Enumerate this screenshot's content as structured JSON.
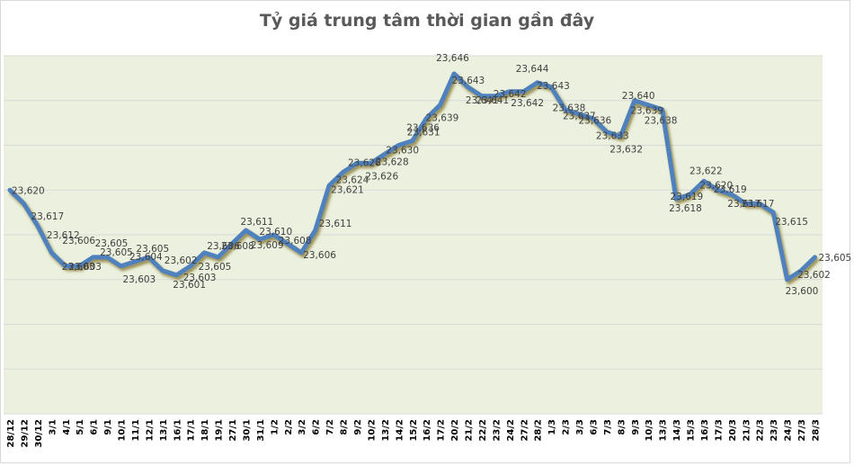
{
  "chart_data": {
    "type": "line",
    "title": "Tỷ giá trung tâm thời gian gần đây",
    "xlabel": "",
    "ylabel": "",
    "ylim": [
      23570,
      23650
    ],
    "grid": true,
    "gridline_step": 10,
    "legend": "none",
    "colors": {
      "line": "#4f81bd",
      "plot_bg": "#ebf1de",
      "gridline": "#d9d9d9",
      "shadow": "#8a7a3a",
      "label": "#404040",
      "title": "#595959"
    },
    "categories": [
      "28/12",
      "29/12",
      "30/12",
      "3/1",
      "4/1",
      "5/1",
      "6/1",
      "9/1",
      "10/1",
      "11/1",
      "12/1",
      "13/1",
      "16/1",
      "17/1",
      "18/1",
      "19/1",
      "27/1",
      "30/1",
      "31/1",
      "1/2",
      "2/2",
      "3/2",
      "6/2",
      "7/2",
      "8/2",
      "9/2",
      "10/2",
      "13/2",
      "14/2",
      "15/2",
      "16/2",
      "17/2",
      "20/2",
      "21/2",
      "22/2",
      "23/2",
      "24/2",
      "27/2",
      "28/2",
      "1/3",
      "2/3",
      "3/3",
      "6/3",
      "7/3",
      "8/3",
      "9/3",
      "10/3",
      "13/3",
      "14/3",
      "15/3",
      "16/3",
      "17/3",
      "20/3",
      "21/3",
      "22/3",
      "23/3",
      "24/3",
      "27/3",
      "28/3"
    ],
    "series": [
      {
        "name": "Tỷ giá trung tâm",
        "values": [
          23620,
          23617,
          23612,
          23606,
          23603,
          23603,
          23605,
          23605,
          23603,
          23604,
          23605,
          23602,
          23601,
          23603,
          23606,
          23605,
          23608,
          23611,
          23609,
          23610,
          23608,
          23606,
          23611,
          23621,
          23624,
          23626,
          23626,
          23628,
          23630,
          23631,
          23636,
          23639,
          23646,
          23643,
          23641,
          23641,
          23642,
          23642,
          23644,
          23643,
          23638,
          23637,
          23636,
          23633,
          23632,
          23640,
          23639,
          23638,
          23618,
          23619,
          23622,
          23620,
          23619,
          23617,
          23617,
          23615,
          23600,
          23602,
          23605
        ]
      }
    ],
    "data_labels": [
      "23,620",
      "23,617",
      "23,612",
      "23,606",
      "23,603",
      "23,603",
      "23,605",
      "23,605",
      "23,603",
      "23,604",
      "23,605",
      "23,602",
      "23,601",
      "23,603",
      "23,606",
      "23,605",
      "23,608",
      "23,611",
      "23,609",
      "23,610",
      "23,608",
      "23,606",
      "23,611",
      "23,621",
      "23,624",
      "23,626",
      "23,626",
      "23,628",
      "23,630",
      "23,631",
      "23,636",
      "23,639",
      "23,646",
      "23,643",
      "23,641",
      "23,641",
      "23,642",
      "23,642",
      "23,644",
      "23,643",
      "23,638",
      "23,637",
      "23,636",
      "23,633",
      "23,632",
      "23,640",
      "23,639",
      "23,638",
      "23,618",
      "23,619",
      "23,622",
      "23,620",
      "23,619",
      "23,617",
      "23,617",
      "23,615",
      "23,600",
      "23,602",
      "23,605"
    ]
  }
}
